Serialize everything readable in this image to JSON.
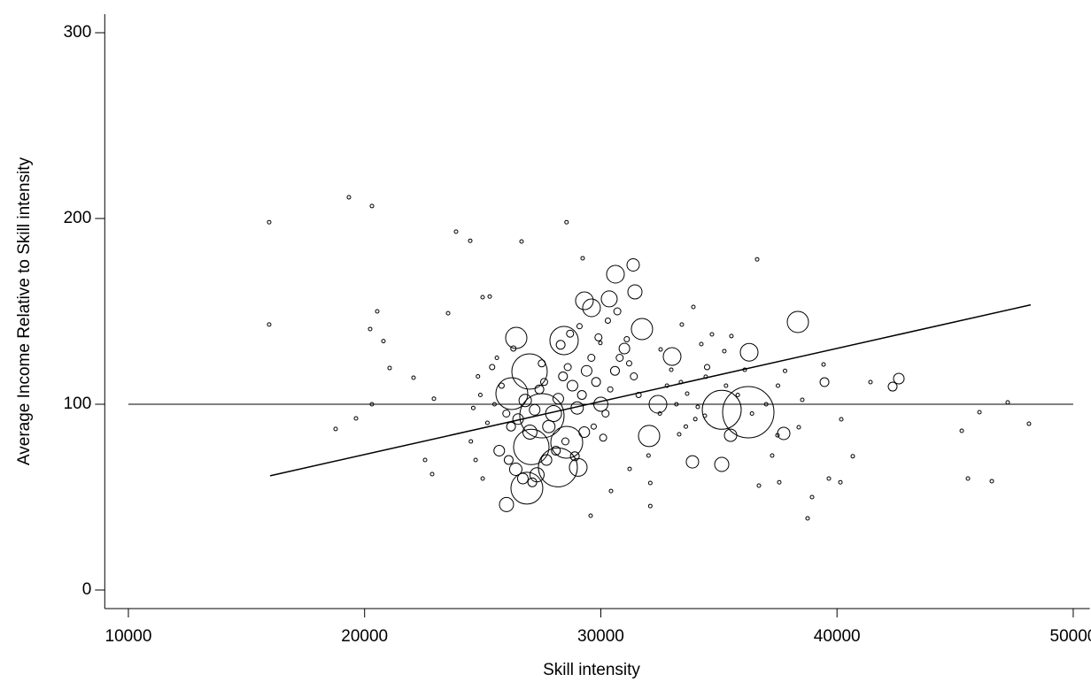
{
  "chart_data": {
    "type": "scatter",
    "x_label": "Skill intensity",
    "y_label": "Average Income Relative to Skill intensity",
    "xlim": [
      9000,
      50700
    ],
    "ylim": [
      -10,
      310
    ],
    "xticks": [
      10000,
      20000,
      30000,
      40000,
      50000
    ],
    "yticks": [
      0,
      100,
      200,
      300
    ],
    "color": "#000000",
    "reference_y": 100,
    "fit": {
      "x": [
        16000,
        48200
      ],
      "values": [
        61.5,
        153.5
      ]
    },
    "x": [
      26421,
      30620,
      31370,
      31744,
      38343,
      36244,
      35120,
      36281,
      29307,
      29607,
      30357,
      31445,
      32045,
      33019,
      28445,
      26983,
      26233,
      27058,
      27508,
      28183,
      26870,
      28558,
      29045,
      26008,
      32420,
      35120,
      37743,
      42617,
      42355,
      39470,
      33880,
      35495,
      15960,
      15960,
      19335,
      20310,
      19635,
      18773,
      20310,
      20535,
      20798,
      20235,
      21060,
      22072,
      22560,
      22860,
      22935,
      23535,
      23872,
      24472,
      24997,
      25297,
      26645,
      28550,
      29232,
      36618,
      29982,
      36094,
      38380,
      38943,
      38755,
      39655,
      40143,
      40667,
      40180,
      39430,
      41417,
      45280,
      45543,
      46030,
      46553,
      47227,
      48126,
      38530,
      37480,
      37555,
      36693,
      37255,
      34443,
      33918,
      34255,
      34705,
      35230,
      35530,
      33430,
      32532,
      32982,
      33393,
      33656,
      34105,
      34405,
      33318,
      32020,
      32095,
      32095,
      31220,
      30432,
      29570,
      25500,
      25800,
      26000,
      26200,
      26500,
      26800,
      27000,
      27200,
      27400,
      27600,
      27800,
      28000,
      28200,
      28400,
      28600,
      28800,
      29000,
      29200,
      29400,
      29600,
      29800,
      30000,
      30200,
      30400,
      30600,
      30800,
      31000,
      31200,
      31400,
      31600,
      25700,
      26100,
      26400,
      26700,
      27100,
      27300,
      27700,
      28100,
      28500,
      28900,
      29300,
      29700,
      30100,
      25400,
      25600,
      26300,
      27500,
      28300,
      28700,
      29100,
      29900,
      30300,
      30700,
      31100,
      24800,
      24600,
      24500,
      24700,
      25000,
      25200,
      24900,
      32500,
      32800,
      33200,
      33600,
      34000,
      34500,
      35300,
      35800,
      36400,
      37000,
      37500,
      37800
    ],
    "values": [
      135.7,
      170,
      175,
      140.5,
      144.3,
      95.7,
      97,
      128,
      155.7,
      151.9,
      156.7,
      160.5,
      82.9,
      125.7,
      134.3,
      117.6,
      105.7,
      77,
      93.8,
      66,
      54.8,
      79.5,
      66,
      46,
      100,
      67.6,
      84.3,
      113.8,
      109.5,
      111.9,
      69,
      83.3,
      198,
      142.9,
      211.4,
      206.7,
      92.4,
      86.7,
      100,
      150,
      134,
      140.5,
      119.5,
      114.3,
      70,
      62.4,
      103,
      149,
      192.9,
      188,
      157.6,
      158,
      187.6,
      198,
      178.6,
      178,
      133,
      118.6,
      87.6,
      50,
      38.6,
      60,
      58,
      72,
      91.9,
      121.4,
      111.9,
      85.7,
      60,
      95.7,
      58.6,
      101,
      89.5,
      102.4,
      83.3,
      58,
      56.2,
      72.4,
      114.8,
      152.4,
      132.4,
      137.6,
      128.6,
      136.7,
      142.9,
      129.5,
      118.6,
      111.9,
      105.7,
      98.6,
      93.8,
      83.8,
      72.4,
      57.6,
      45.2,
      65.2,
      53.3,
      40,
      100,
      110,
      95,
      88,
      92,
      102,
      85,
      97,
      108,
      112,
      88,
      95,
      103,
      115,
      120,
      110,
      98,
      105,
      118,
      125,
      112,
      100,
      95,
      108,
      118,
      125,
      130,
      122,
      115,
      105,
      75,
      70,
      65,
      60,
      58,
      62,
      70,
      75,
      80,
      72,
      85,
      88,
      82,
      120,
      125,
      130,
      122,
      132,
      138,
      142,
      136,
      145,
      150,
      135,
      115,
      98,
      80,
      70,
      60,
      90,
      105,
      95,
      110,
      100,
      88,
      92,
      120,
      110,
      105,
      95,
      100,
      110,
      118
    ],
    "sizes": [
      12,
      10,
      7,
      12,
      12,
      29,
      22,
      10,
      10,
      10,
      9,
      8,
      12,
      10,
      16,
      20,
      18,
      20,
      25,
      22,
      18,
      18,
      10,
      8,
      10,
      8,
      7,
      6,
      5,
      5,
      7,
      7,
      2,
      2,
      2,
      2,
      2,
      2,
      2,
      2,
      2,
      2,
      2,
      2,
      2,
      2,
      2,
      2,
      2,
      2,
      2,
      2,
      2,
      2,
      2,
      2,
      2,
      2,
      2,
      2,
      2,
      2,
      2,
      2,
      2,
      2,
      2,
      2,
      2,
      2,
      2,
      2,
      2,
      2,
      2,
      2,
      2,
      2,
      2,
      2,
      2,
      2,
      2,
      2,
      2,
      2,
      2,
      2,
      2,
      2,
      2,
      2,
      2,
      2,
      2,
      2,
      2,
      2,
      2,
      3,
      4,
      5,
      6,
      7,
      8,
      6,
      5,
      4,
      7,
      9,
      6,
      5,
      4,
      6,
      7,
      5,
      6,
      4,
      5,
      8,
      4,
      3,
      5,
      4,
      6,
      3,
      4,
      3,
      6,
      5,
      7,
      6,
      5,
      8,
      6,
      5,
      4,
      5,
      6,
      3,
      4,
      3,
      2,
      3,
      4,
      5,
      4,
      3,
      4,
      3,
      4,
      3,
      2,
      2,
      2,
      2,
      2,
      2,
      2,
      2,
      2,
      2,
      2,
      2,
      3,
      2,
      2,
      2,
      2,
      2,
      2
    ]
  }
}
